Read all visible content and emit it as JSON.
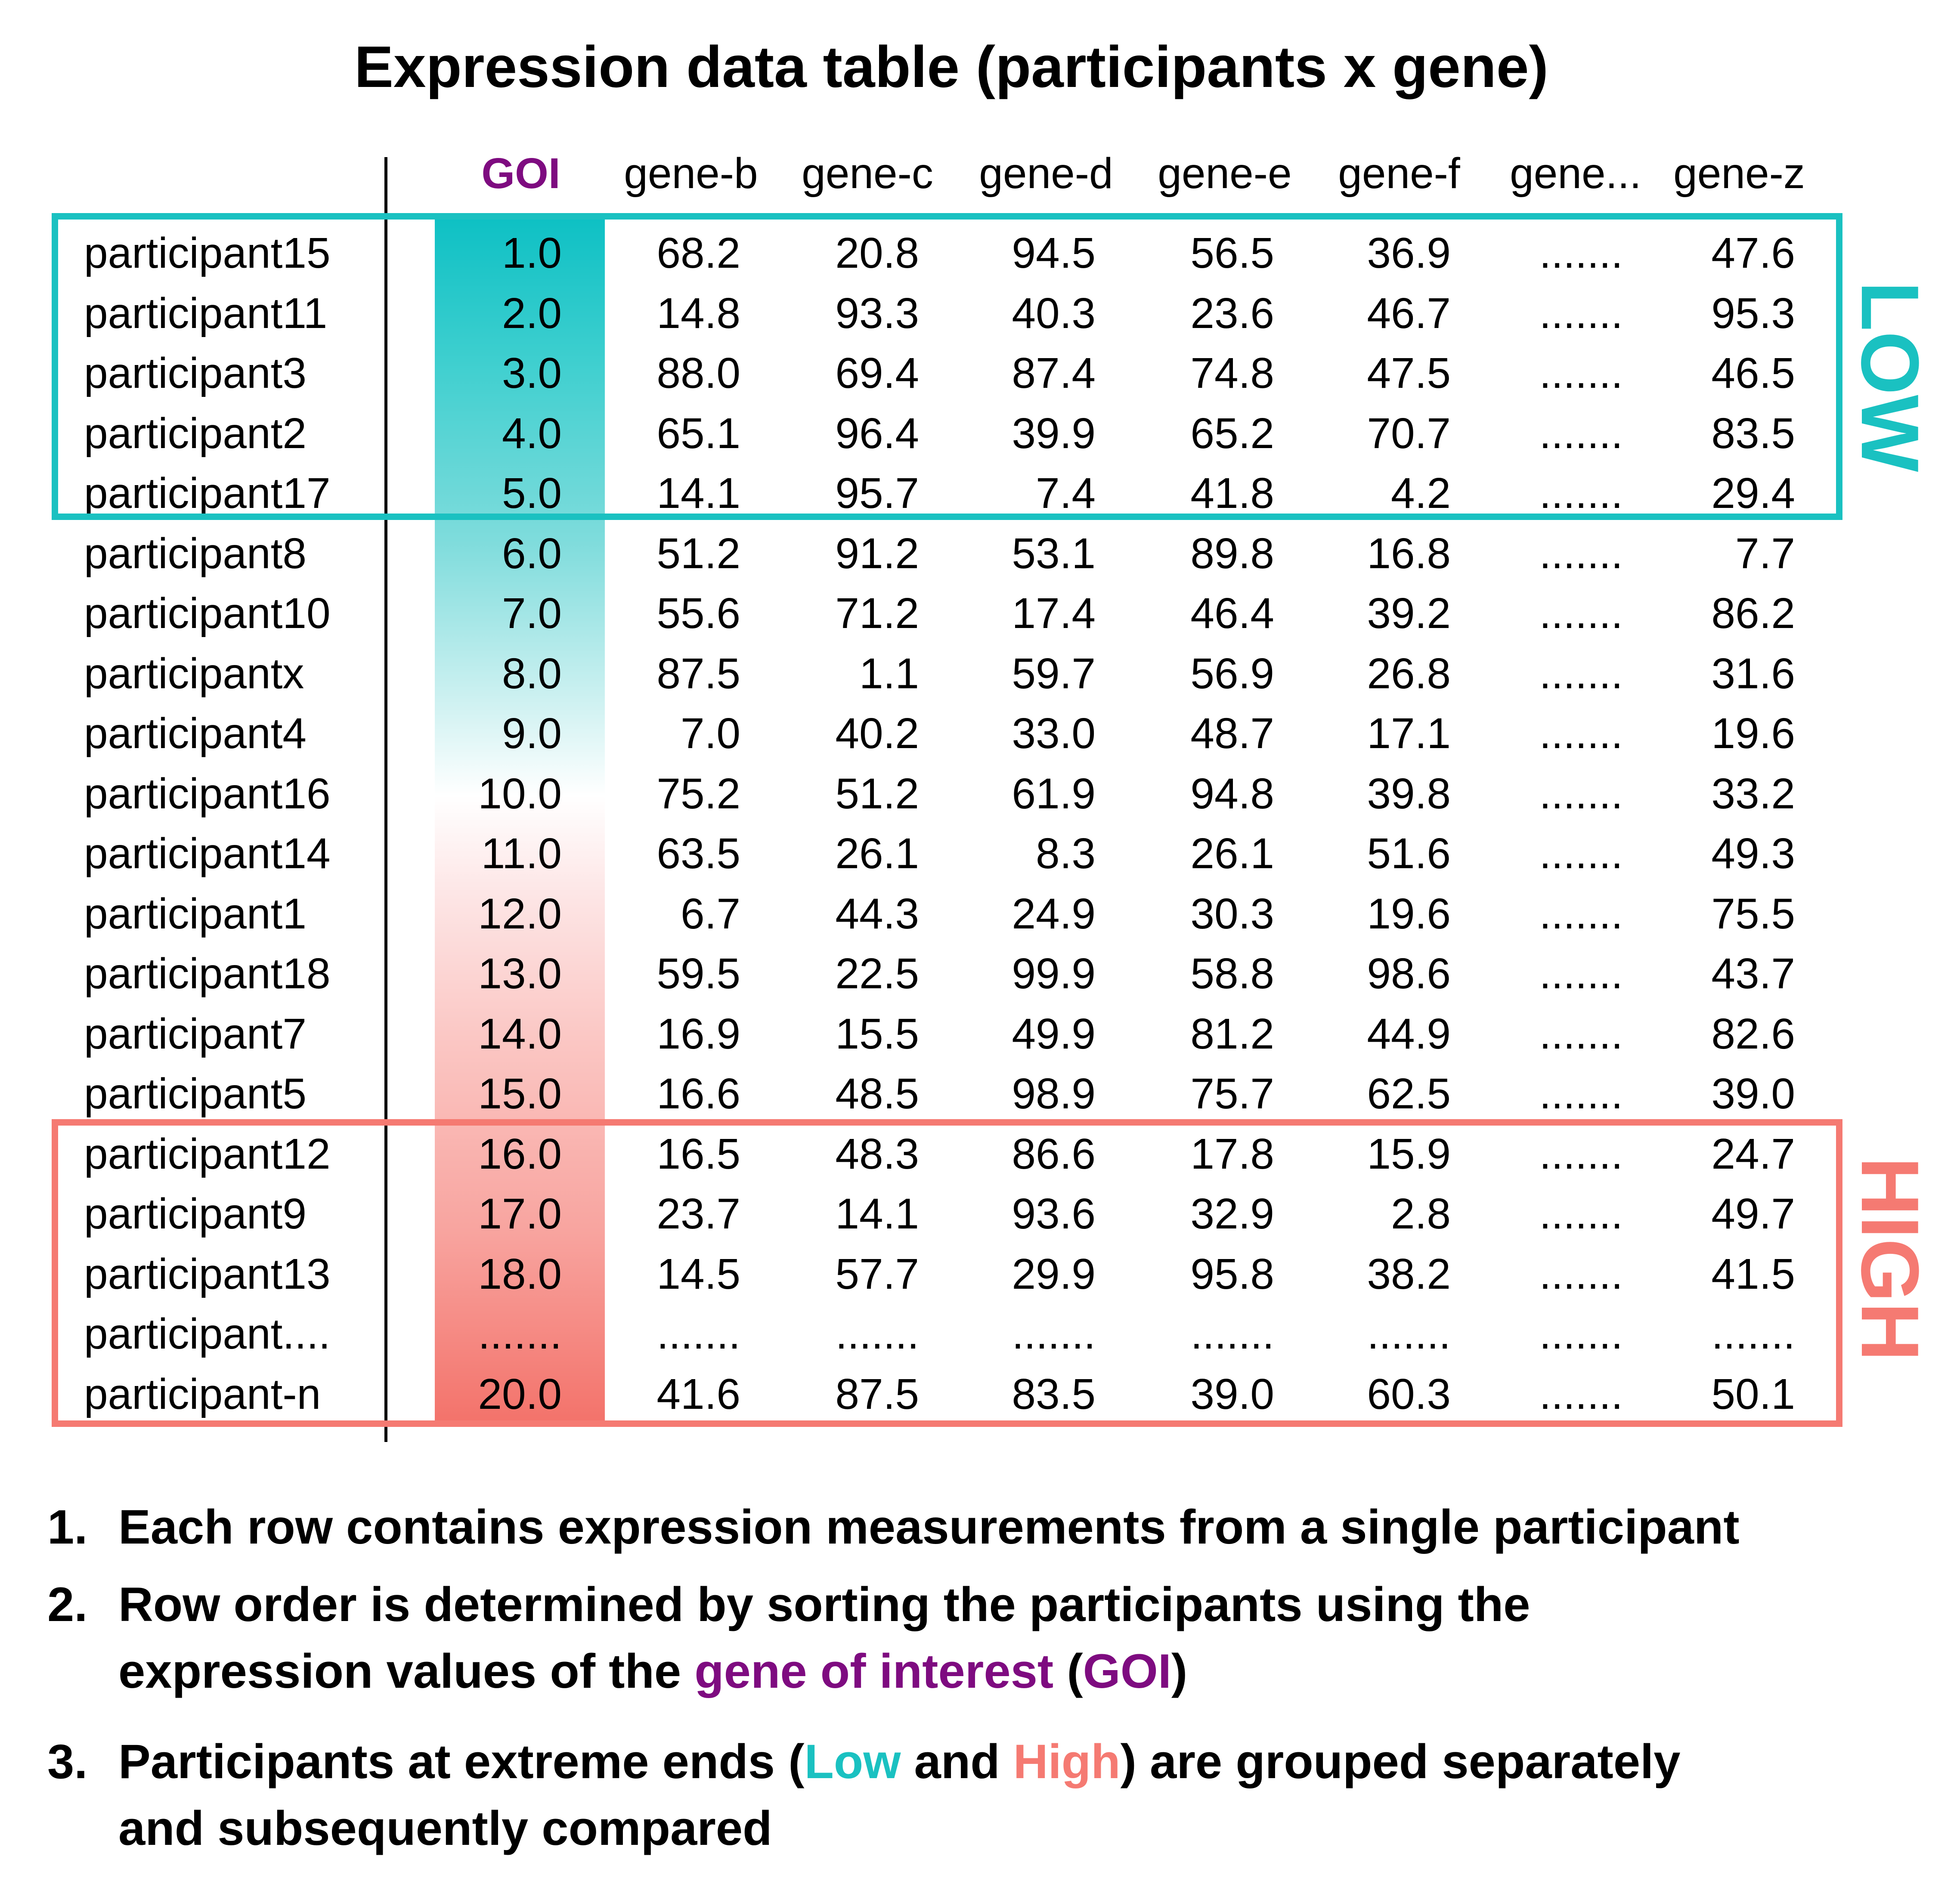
{
  "title": "Expression data table (participants x gene)",
  "columns": [
    "GOI",
    "gene-b",
    "gene-c",
    "gene-d",
    "gene-e",
    "gene-f",
    "gene...",
    "gene-z"
  ],
  "rows": [
    {
      "name": "participant15",
      "values": [
        "1.0",
        "68.2",
        "20.8",
        "94.5",
        "56.5",
        "36.9",
        ".......",
        "47.6"
      ]
    },
    {
      "name": "participant11",
      "values": [
        "2.0",
        "14.8",
        "93.3",
        "40.3",
        "23.6",
        "46.7",
        ".......",
        "95.3"
      ]
    },
    {
      "name": "participant3",
      "values": [
        "3.0",
        "88.0",
        "69.4",
        "87.4",
        "74.8",
        "47.5",
        ".......",
        "46.5"
      ]
    },
    {
      "name": "participant2",
      "values": [
        "4.0",
        "65.1",
        "96.4",
        "39.9",
        "65.2",
        "70.7",
        ".......",
        "83.5"
      ]
    },
    {
      "name": "participant17",
      "values": [
        "5.0",
        "14.1",
        "95.7",
        "7.4",
        "41.8",
        "4.2",
        ".......",
        "29.4"
      ]
    },
    {
      "name": "participant8",
      "values": [
        "6.0",
        "51.2",
        "91.2",
        "53.1",
        "89.8",
        "16.8",
        ".......",
        "7.7"
      ]
    },
    {
      "name": "participant10",
      "values": [
        "7.0",
        "55.6",
        "71.2",
        "17.4",
        "46.4",
        "39.2",
        ".......",
        "86.2"
      ]
    },
    {
      "name": "participantx",
      "values": [
        "8.0",
        "87.5",
        "1.1",
        "59.7",
        "56.9",
        "26.8",
        ".......",
        "31.6"
      ]
    },
    {
      "name": "participant4",
      "values": [
        "9.0",
        "7.0",
        "40.2",
        "33.0",
        "48.7",
        "17.1",
        ".......",
        "19.6"
      ]
    },
    {
      "name": "participant16",
      "values": [
        "10.0",
        "75.2",
        "51.2",
        "61.9",
        "94.8",
        "39.8",
        ".......",
        "33.2"
      ]
    },
    {
      "name": "participant14",
      "values": [
        "11.0",
        "63.5",
        "26.1",
        "8.3",
        "26.1",
        "51.6",
        ".......",
        "49.3"
      ]
    },
    {
      "name": "participant1",
      "values": [
        "12.0",
        "6.7",
        "44.3",
        "24.9",
        "30.3",
        "19.6",
        ".......",
        "75.5"
      ]
    },
    {
      "name": "participant18",
      "values": [
        "13.0",
        "59.5",
        "22.5",
        "99.9",
        "58.8",
        "98.6",
        ".......",
        "43.7"
      ]
    },
    {
      "name": "participant7",
      "values": [
        "14.0",
        "16.9",
        "15.5",
        "49.9",
        "81.2",
        "44.9",
        ".......",
        "82.6"
      ]
    },
    {
      "name": "participant5",
      "values": [
        "15.0",
        "16.6",
        "48.5",
        "98.9",
        "75.7",
        "62.5",
        ".......",
        "39.0"
      ]
    },
    {
      "name": "participant12",
      "values": [
        "16.0",
        "16.5",
        "48.3",
        "86.6",
        "17.8",
        "15.9",
        ".......",
        "24.7"
      ]
    },
    {
      "name": "participant9",
      "values": [
        "17.0",
        "23.7",
        "14.1",
        "93.6",
        "32.9",
        "2.8",
        ".......",
        "49.7"
      ]
    },
    {
      "name": "participant13",
      "values": [
        "18.0",
        "14.5",
        "57.7",
        "29.9",
        "95.8",
        "38.2",
        ".......",
        "41.5"
      ]
    },
    {
      "name": "participant....",
      "values": [
        ".......",
        ".......",
        ".......",
        ".......",
        ".......",
        ".......",
        ".......",
        "......."
      ]
    },
    {
      "name": "participant-n",
      "values": [
        "20.0",
        "41.6",
        "87.5",
        "83.5",
        "39.0",
        "60.3",
        ".......",
        "50.1"
      ]
    }
  ],
  "groups": {
    "low": "LOW",
    "high": "HIGH"
  },
  "notes": {
    "n1": {
      "num": "1.",
      "text": "Each row contains expression measurements from a single participant"
    },
    "n2": {
      "num": "2.",
      "line1": "Row order is determined by sorting the participants using the",
      "line2_pre": "expression values of the ",
      "line2_goi_long": "gene of interest",
      "line2_mid": " (",
      "line2_goi": "GOI",
      "line2_post": ")"
    },
    "n3": {
      "num": "3.",
      "line1_pre": "Participants at extreme ends (",
      "low": "Low",
      "and": " and ",
      "high": "High",
      "line1_post": ") are grouped separately",
      "line2": "and subsequently compared"
    }
  },
  "colors": {
    "goi": "#7e0b80",
    "low": "#1ac1c1",
    "high": "#f57a72"
  }
}
